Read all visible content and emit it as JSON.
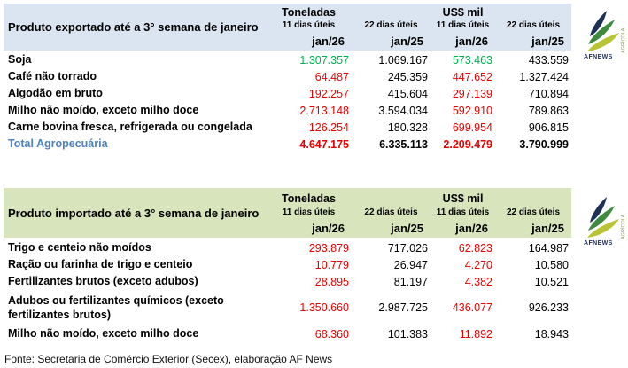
{
  "colors": {
    "export_header_bg": "#dbe5f1",
    "import_header_bg": "#d8e4bc",
    "positive": "#00b050",
    "negative": "#e60000",
    "total_label": "#4f81bd"
  },
  "export_table": {
    "title": "Produto exportado até a 3° semana de janeiro",
    "unit_groups": [
      "Toneladas",
      "US$ mil"
    ],
    "columns": [
      {
        "period": "11 dias úteis",
        "month": "jan/26"
      },
      {
        "period": "22 dias úteis",
        "month": "jan/25"
      },
      {
        "period": "11 dias úteis",
        "month": "jan/26"
      },
      {
        "period": "22 dias úteis",
        "month": "jan/25"
      }
    ],
    "rows": [
      {
        "label": "Soja",
        "values": [
          "1.307.357",
          "1.069.167",
          "573.463",
          "433.559"
        ],
        "colors": [
          "green",
          "black",
          "green",
          "black"
        ]
      },
      {
        "label": "Café não torrado",
        "values": [
          "64.487",
          "245.359",
          "447.652",
          "1.327.424"
        ],
        "colors": [
          "red",
          "black",
          "red",
          "black"
        ]
      },
      {
        "label": "Algodão em bruto",
        "values": [
          "192.257",
          "415.604",
          "297.139",
          "710.894"
        ],
        "colors": [
          "red",
          "black",
          "red",
          "black"
        ]
      },
      {
        "label": "Milho não moído, exceto milho doce",
        "values": [
          "2.713.148",
          "3.594.034",
          "592.910",
          "789.863"
        ],
        "colors": [
          "red",
          "black",
          "red",
          "black"
        ]
      },
      {
        "label": "Carne bovina fresca, refrigerada ou congelada",
        "values": [
          "126.254",
          "180.328",
          "699.954",
          "906.815"
        ],
        "colors": [
          "red",
          "black",
          "red",
          "black"
        ]
      },
      {
        "label": "Total Agropecuária",
        "values": [
          "4.647.175",
          "6.335.113",
          "2.209.479",
          "3.790.999"
        ],
        "colors": [
          "red",
          "black",
          "red",
          "black"
        ],
        "bold": true,
        "total": true
      }
    ]
  },
  "import_table": {
    "title": "Produto importado até a 3° semana de janeiro",
    "unit_groups": [
      "Toneladas",
      "US$ mil"
    ],
    "columns": [
      {
        "period": "11 dias úteis",
        "month": "jan/26"
      },
      {
        "period": "22 dias úteis",
        "month": "jan/25"
      },
      {
        "period": "11 dias úteis",
        "month": "jan/26"
      },
      {
        "period": "22 dias úteis",
        "month": "jan/25"
      }
    ],
    "rows": [
      {
        "label": "Trigo e centeio não moídos",
        "values": [
          "293.879",
          "717.026",
          "62.823",
          "164.987"
        ],
        "colors": [
          "red",
          "black",
          "red",
          "black"
        ]
      },
      {
        "label": "Ração ou farinha de trigo e centeio",
        "values": [
          "10.779",
          "26.947",
          "4.270",
          "10.580"
        ],
        "colors": [
          "red",
          "black",
          "red",
          "black"
        ]
      },
      {
        "label": "Fertilizantes brutos (exceto adubos)",
        "values": [
          "28.895",
          "81.197",
          "4.382",
          "10.521"
        ],
        "colors": [
          "red",
          "black",
          "red",
          "black"
        ]
      },
      {
        "label": "Adubos ou fertilizantes químicos (exceto fertilizantes brutos)",
        "values": [
          "1.350.660",
          "2.987.725",
          "436.077",
          "926.233"
        ],
        "colors": [
          "red",
          "black",
          "red",
          "black"
        ],
        "tall": true
      },
      {
        "label": "Milho não moído, exceto milho doce",
        "values": [
          "68.360",
          "101.383",
          "11.892",
          "18.943"
        ],
        "colors": [
          "red",
          "black",
          "red",
          "black"
        ]
      }
    ]
  },
  "footer": "Fonte: Secretaria de Comércio Exterior (Secex), elaboração AF News",
  "logo": {
    "name": "AFNEWS",
    "vertical": "AGRÍCOLA"
  }
}
